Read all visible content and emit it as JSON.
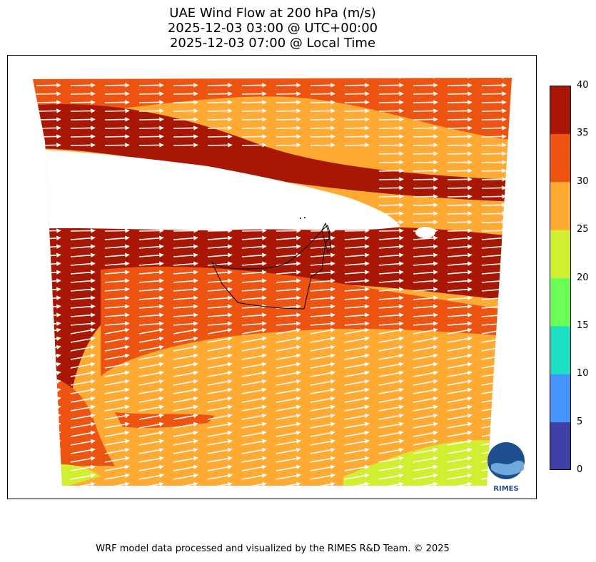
{
  "title": {
    "line1": "UAE Wind Flow at 200 hPa (m/s)",
    "line2": "2025-12-03 03:00 @ UTC+00:00",
    "line3": "2025-12-03 07:00 @ Local Time"
  },
  "colorbar": {
    "ticks": [
      "0",
      "5",
      "10",
      "15",
      "20",
      "25",
      "30",
      "35",
      "40"
    ],
    "colors": [
      "#3f3fa8",
      "#4594ff",
      "#1ddfc4",
      "#6aff57",
      "#d2ee31",
      "#ffab33",
      "#ed5412",
      "#a81703"
    ]
  },
  "logo": {
    "text": "RIMES"
  },
  "footer": {
    "credit": "WRF model data processed and visualized by the RIMES R&D Team. © 2025"
  }
}
